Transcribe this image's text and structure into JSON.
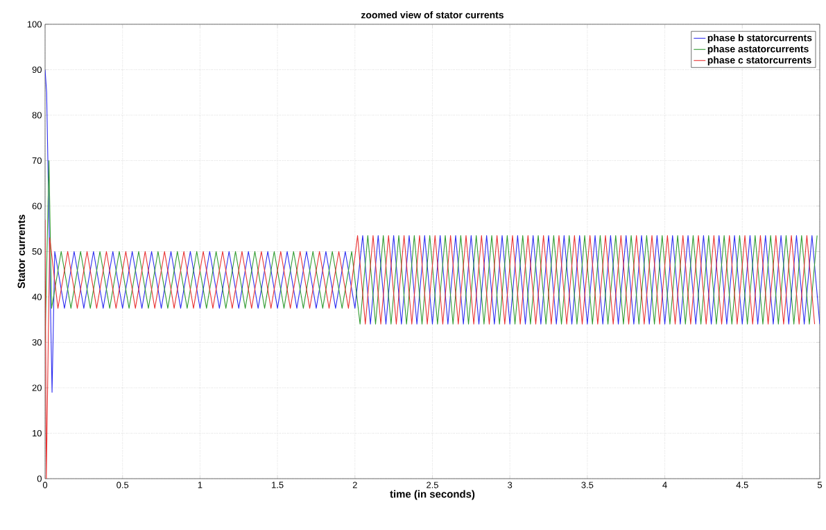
{
  "chart_data": {
    "type": "line",
    "title": "zoomed view of stator currents",
    "xlabel": "time (in seconds)",
    "ylabel": "Stator currents",
    "xlim": [
      0,
      5
    ],
    "ylim": [
      0,
      100
    ],
    "xticks": [
      0,
      0.5,
      1,
      1.5,
      2,
      2.5,
      3,
      3.5,
      4,
      4.5,
      5
    ],
    "yticks": [
      0,
      10,
      20,
      30,
      40,
      50,
      60,
      70,
      80,
      90,
      100
    ],
    "grid": true,
    "legend": "top right",
    "marker": "none",
    "line_style": "solid",
    "series": [
      {
        "name": "phase b statorcurrents",
        "color": "#2b2bf0",
        "x": [
          0,
          0.01,
          0.045,
          0.0625,
          0.125,
          0.1875,
          0.25,
          0.3125,
          0.375,
          0.4375,
          0.5,
          0.5625,
          0.625,
          0.6875,
          0.75,
          0.8125,
          0.875,
          0.9375,
          1,
          1.0625,
          1.125,
          1.1875,
          1.25,
          1.3125,
          1.375,
          1.4375,
          1.5,
          1.5625,
          1.625,
          1.6875,
          1.75,
          1.8125,
          1.875,
          1.9375,
          2,
          2.05,
          2.1,
          2.15,
          2.2,
          2.25,
          2.3,
          2.35,
          2.4,
          2.45,
          2.5,
          2.55,
          2.6,
          2.65,
          2.7,
          2.75,
          2.8,
          2.85,
          2.9,
          2.95,
          3,
          3.05,
          3.1,
          3.15,
          3.2,
          3.25,
          3.3,
          3.35,
          3.4,
          3.45,
          3.5,
          3.55,
          3.6,
          3.65,
          3.7,
          3.75,
          3.8,
          3.85,
          3.9,
          3.95,
          4,
          4.05,
          4.1,
          4.15,
          4.2,
          4.25,
          4.3,
          4.35,
          4.4,
          4.45,
          4.5,
          4.55,
          4.6,
          4.65,
          4.7,
          4.75,
          4.8,
          4.85,
          4.9,
          4.95,
          5
        ],
        "values": [
          90,
          85,
          19,
          50,
          37.5,
          50,
          37.5,
          50,
          37.5,
          50,
          37.5,
          50,
          37.5,
          50,
          37.5,
          50,
          37.5,
          50,
          37.5,
          50,
          37.5,
          50,
          37.5,
          50,
          37.5,
          50,
          37.5,
          50,
          37.5,
          50,
          37.5,
          50,
          37.5,
          50,
          37.5,
          53.5,
          34,
          53.5,
          34,
          53.5,
          34,
          53.5,
          34,
          53.5,
          34,
          53.5,
          34,
          53.5,
          34,
          53.5,
          34,
          53.5,
          34,
          53.5,
          34,
          53.5,
          34,
          53.5,
          34,
          53.5,
          34,
          53.5,
          34,
          53.5,
          34,
          53.5,
          34,
          53.5,
          34,
          53.5,
          34,
          53.5,
          34,
          53.5,
          34,
          53.5,
          34,
          53.5,
          34,
          53.5,
          34,
          53.5,
          34,
          53.5,
          34,
          53.5,
          34,
          53.5,
          34,
          53.5,
          34,
          53.5,
          34,
          53.5,
          34
        ]
      },
      {
        "name": "phase astatorcurrents",
        "color": "#2e9a2e",
        "x": [
          0,
          0.025,
          0.042,
          0.104,
          0.167,
          0.229,
          0.292,
          0.354,
          0.417,
          0.479,
          0.542,
          0.604,
          0.667,
          0.729,
          0.792,
          0.854,
          0.917,
          0.979,
          1.042,
          1.104,
          1.167,
          1.229,
          1.292,
          1.354,
          1.417,
          1.479,
          1.542,
          1.604,
          1.667,
          1.729,
          1.792,
          1.854,
          1.917,
          1.979,
          2.033,
          2.083,
          2.133,
          2.183,
          2.233,
          2.283,
          2.333,
          2.383,
          2.433,
          2.483,
          2.533,
          2.583,
          2.633,
          2.683,
          2.733,
          2.783,
          2.833,
          2.883,
          2.933,
          2.983,
          3.033,
          3.083,
          3.133,
          3.183,
          3.233,
          3.283,
          3.333,
          3.383,
          3.433,
          3.483,
          3.533,
          3.583,
          3.633,
          3.683,
          3.733,
          3.783,
          3.833,
          3.883,
          3.933,
          3.983,
          4.033,
          4.083,
          4.133,
          4.183,
          4.233,
          4.283,
          4.333,
          4.383,
          4.433,
          4.483,
          4.533,
          4.583,
          4.633,
          4.683,
          4.733,
          4.783,
          4.833,
          4.883,
          4.933,
          4.983
        ],
        "values": [
          30,
          70,
          37.5,
          50,
          37.5,
          50,
          37.5,
          50,
          37.5,
          50,
          37.5,
          50,
          37.5,
          50,
          37.5,
          50,
          37.5,
          50,
          37.5,
          50,
          37.5,
          50,
          37.5,
          50,
          37.5,
          50,
          37.5,
          50,
          37.5,
          50,
          37.5,
          50,
          37.5,
          50,
          34,
          53.5,
          34,
          53.5,
          34,
          53.5,
          34,
          53.5,
          34,
          53.5,
          34,
          53.5,
          34,
          53.5,
          34,
          53.5,
          34,
          53.5,
          34,
          53.5,
          34,
          53.5,
          34,
          53.5,
          34,
          53.5,
          34,
          53.5,
          34,
          53.5,
          34,
          53.5,
          34,
          53.5,
          34,
          53.5,
          34,
          53.5,
          34,
          53.5,
          34,
          53.5,
          34,
          53.5,
          34,
          53.5,
          34,
          53.5,
          34,
          53.5,
          34,
          53.5,
          34,
          53.5,
          34,
          53.5,
          34,
          53.5,
          34,
          53.5
        ]
      },
      {
        "name": "phase c statorcurrents",
        "color": "#e83030",
        "x": [
          0,
          0.008,
          0.03,
          0.083,
          0.146,
          0.208,
          0.271,
          0.333,
          0.396,
          0.458,
          0.521,
          0.583,
          0.646,
          0.708,
          0.771,
          0.833,
          0.896,
          0.958,
          1.021,
          1.083,
          1.146,
          1.208,
          1.271,
          1.333,
          1.396,
          1.458,
          1.521,
          1.583,
          1.646,
          1.708,
          1.771,
          1.833,
          1.896,
          1.958,
          2.017,
          2.067,
          2.117,
          2.167,
          2.217,
          2.267,
          2.317,
          2.367,
          2.417,
          2.467,
          2.517,
          2.567,
          2.617,
          2.667,
          2.717,
          2.767,
          2.817,
          2.867,
          2.917,
          2.967,
          3.017,
          3.067,
          3.117,
          3.167,
          3.217,
          3.267,
          3.317,
          3.367,
          3.417,
          3.467,
          3.517,
          3.567,
          3.617,
          3.667,
          3.717,
          3.767,
          3.817,
          3.867,
          3.917,
          3.967,
          4.017,
          4.067,
          4.117,
          4.167,
          4.217,
          4.267,
          4.317,
          4.367,
          4.417,
          4.467,
          4.517,
          4.567,
          4.617,
          4.667,
          4.717,
          4.767,
          4.817,
          4.867,
          4.917,
          4.967
        ],
        "values": [
          57,
          0,
          53,
          37.5,
          50,
          37.5,
          50,
          37.5,
          50,
          37.5,
          50,
          37.5,
          50,
          37.5,
          50,
          37.5,
          50,
          37.5,
          50,
          37.5,
          50,
          37.5,
          50,
          37.5,
          50,
          37.5,
          50,
          37.5,
          50,
          37.5,
          50,
          37.5,
          50,
          37.5,
          53.5,
          34,
          53.5,
          34,
          53.5,
          34,
          53.5,
          34,
          53.5,
          34,
          53.5,
          34,
          53.5,
          34,
          53.5,
          34,
          53.5,
          34,
          53.5,
          34,
          53.5,
          34,
          53.5,
          34,
          53.5,
          34,
          53.5,
          34,
          53.5,
          34,
          53.5,
          34,
          53.5,
          34,
          53.5,
          34,
          53.5,
          34,
          53.5,
          34,
          53.5,
          34,
          53.5,
          34,
          53.5,
          34,
          53.5,
          34,
          53.5,
          34,
          53.5,
          34,
          53.5,
          34,
          53.5,
          34,
          53.5,
          34,
          53.5,
          34
        ]
      }
    ]
  }
}
